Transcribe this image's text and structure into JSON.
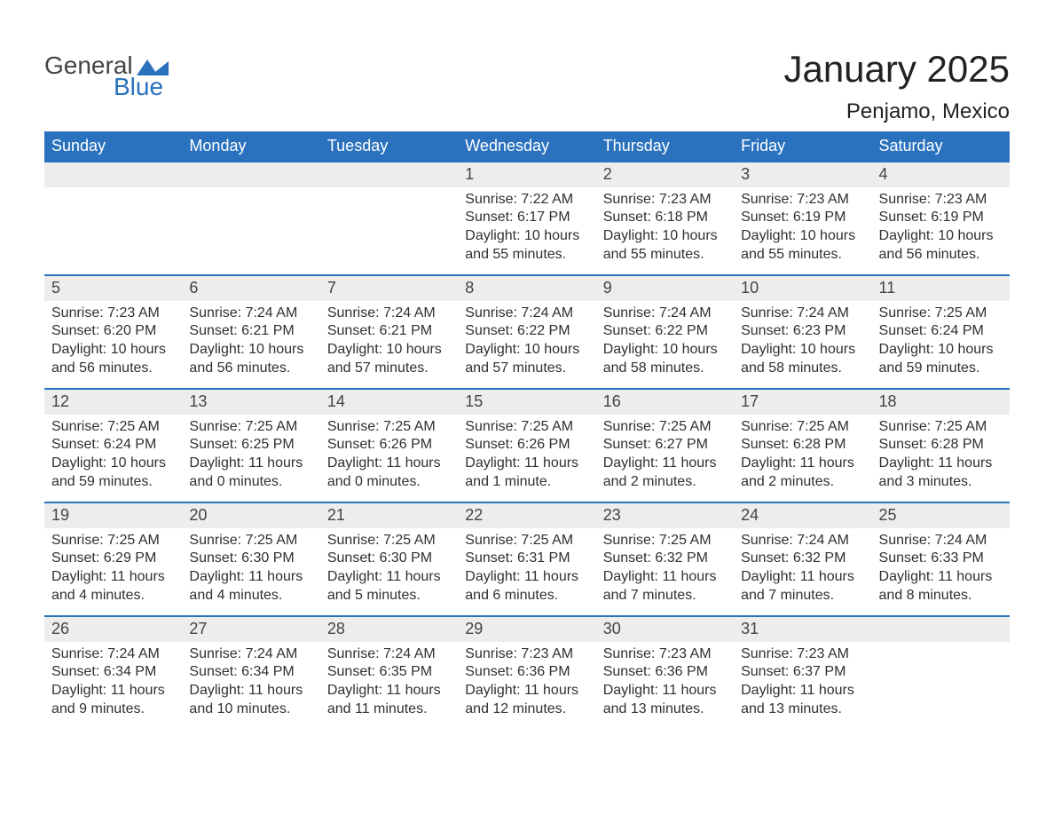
{
  "logo": {
    "general": "General",
    "blue": "Blue"
  },
  "title": "January 2025",
  "location": "Penjamo, Mexico",
  "columns": [
    "Sunday",
    "Monday",
    "Tuesday",
    "Wednesday",
    "Thursday",
    "Friday",
    "Saturday"
  ],
  "style": {
    "header_bg": "#2a72bd",
    "header_text": "#ffffff",
    "daynum_bg": "#ededed",
    "daynum_text": "#444444",
    "detail_text": "#303030",
    "border_color": "#2a72bd",
    "page_bg": "#ffffff",
    "title_fontsize": 42,
    "location_fontsize": 24,
    "header_fontsize": 18,
    "daynum_fontsize": 18,
    "detail_fontsize": 16
  },
  "weeks": [
    [
      null,
      null,
      null,
      {
        "day": "1",
        "sunrise": "Sunrise: 7:22 AM",
        "sunset": "Sunset: 6:17 PM",
        "daylight": "Daylight: 10 hours and 55 minutes."
      },
      {
        "day": "2",
        "sunrise": "Sunrise: 7:23 AM",
        "sunset": "Sunset: 6:18 PM",
        "daylight": "Daylight: 10 hours and 55 minutes."
      },
      {
        "day": "3",
        "sunrise": "Sunrise: 7:23 AM",
        "sunset": "Sunset: 6:19 PM",
        "daylight": "Daylight: 10 hours and 55 minutes."
      },
      {
        "day": "4",
        "sunrise": "Sunrise: 7:23 AM",
        "sunset": "Sunset: 6:19 PM",
        "daylight": "Daylight: 10 hours and 56 minutes."
      }
    ],
    [
      {
        "day": "5",
        "sunrise": "Sunrise: 7:23 AM",
        "sunset": "Sunset: 6:20 PM",
        "daylight": "Daylight: 10 hours and 56 minutes."
      },
      {
        "day": "6",
        "sunrise": "Sunrise: 7:24 AM",
        "sunset": "Sunset: 6:21 PM",
        "daylight": "Daylight: 10 hours and 56 minutes."
      },
      {
        "day": "7",
        "sunrise": "Sunrise: 7:24 AM",
        "sunset": "Sunset: 6:21 PM",
        "daylight": "Daylight: 10 hours and 57 minutes."
      },
      {
        "day": "8",
        "sunrise": "Sunrise: 7:24 AM",
        "sunset": "Sunset: 6:22 PM",
        "daylight": "Daylight: 10 hours and 57 minutes."
      },
      {
        "day": "9",
        "sunrise": "Sunrise: 7:24 AM",
        "sunset": "Sunset: 6:22 PM",
        "daylight": "Daylight: 10 hours and 58 minutes."
      },
      {
        "day": "10",
        "sunrise": "Sunrise: 7:24 AM",
        "sunset": "Sunset: 6:23 PM",
        "daylight": "Daylight: 10 hours and 58 minutes."
      },
      {
        "day": "11",
        "sunrise": "Sunrise: 7:25 AM",
        "sunset": "Sunset: 6:24 PM",
        "daylight": "Daylight: 10 hours and 59 minutes."
      }
    ],
    [
      {
        "day": "12",
        "sunrise": "Sunrise: 7:25 AM",
        "sunset": "Sunset: 6:24 PM",
        "daylight": "Daylight: 10 hours and 59 minutes."
      },
      {
        "day": "13",
        "sunrise": "Sunrise: 7:25 AM",
        "sunset": "Sunset: 6:25 PM",
        "daylight": "Daylight: 11 hours and 0 minutes."
      },
      {
        "day": "14",
        "sunrise": "Sunrise: 7:25 AM",
        "sunset": "Sunset: 6:26 PM",
        "daylight": "Daylight: 11 hours and 0 minutes."
      },
      {
        "day": "15",
        "sunrise": "Sunrise: 7:25 AM",
        "sunset": "Sunset: 6:26 PM",
        "daylight": "Daylight: 11 hours and 1 minute."
      },
      {
        "day": "16",
        "sunrise": "Sunrise: 7:25 AM",
        "sunset": "Sunset: 6:27 PM",
        "daylight": "Daylight: 11 hours and 2 minutes."
      },
      {
        "day": "17",
        "sunrise": "Sunrise: 7:25 AM",
        "sunset": "Sunset: 6:28 PM",
        "daylight": "Daylight: 11 hours and 2 minutes."
      },
      {
        "day": "18",
        "sunrise": "Sunrise: 7:25 AM",
        "sunset": "Sunset: 6:28 PM",
        "daylight": "Daylight: 11 hours and 3 minutes."
      }
    ],
    [
      {
        "day": "19",
        "sunrise": "Sunrise: 7:25 AM",
        "sunset": "Sunset: 6:29 PM",
        "daylight": "Daylight: 11 hours and 4 minutes."
      },
      {
        "day": "20",
        "sunrise": "Sunrise: 7:25 AM",
        "sunset": "Sunset: 6:30 PM",
        "daylight": "Daylight: 11 hours and 4 minutes."
      },
      {
        "day": "21",
        "sunrise": "Sunrise: 7:25 AM",
        "sunset": "Sunset: 6:30 PM",
        "daylight": "Daylight: 11 hours and 5 minutes."
      },
      {
        "day": "22",
        "sunrise": "Sunrise: 7:25 AM",
        "sunset": "Sunset: 6:31 PM",
        "daylight": "Daylight: 11 hours and 6 minutes."
      },
      {
        "day": "23",
        "sunrise": "Sunrise: 7:25 AM",
        "sunset": "Sunset: 6:32 PM",
        "daylight": "Daylight: 11 hours and 7 minutes."
      },
      {
        "day": "24",
        "sunrise": "Sunrise: 7:24 AM",
        "sunset": "Sunset: 6:32 PM",
        "daylight": "Daylight: 11 hours and 7 minutes."
      },
      {
        "day": "25",
        "sunrise": "Sunrise: 7:24 AM",
        "sunset": "Sunset: 6:33 PM",
        "daylight": "Daylight: 11 hours and 8 minutes."
      }
    ],
    [
      {
        "day": "26",
        "sunrise": "Sunrise: 7:24 AM",
        "sunset": "Sunset: 6:34 PM",
        "daylight": "Daylight: 11 hours and 9 minutes."
      },
      {
        "day": "27",
        "sunrise": "Sunrise: 7:24 AM",
        "sunset": "Sunset: 6:34 PM",
        "daylight": "Daylight: 11 hours and 10 minutes."
      },
      {
        "day": "28",
        "sunrise": "Sunrise: 7:24 AM",
        "sunset": "Sunset: 6:35 PM",
        "daylight": "Daylight: 11 hours and 11 minutes."
      },
      {
        "day": "29",
        "sunrise": "Sunrise: 7:23 AM",
        "sunset": "Sunset: 6:36 PM",
        "daylight": "Daylight: 11 hours and 12 minutes."
      },
      {
        "day": "30",
        "sunrise": "Sunrise: 7:23 AM",
        "sunset": "Sunset: 6:36 PM",
        "daylight": "Daylight: 11 hours and 13 minutes."
      },
      {
        "day": "31",
        "sunrise": "Sunrise: 7:23 AM",
        "sunset": "Sunset: 6:37 PM",
        "daylight": "Daylight: 11 hours and 13 minutes."
      },
      null
    ]
  ]
}
